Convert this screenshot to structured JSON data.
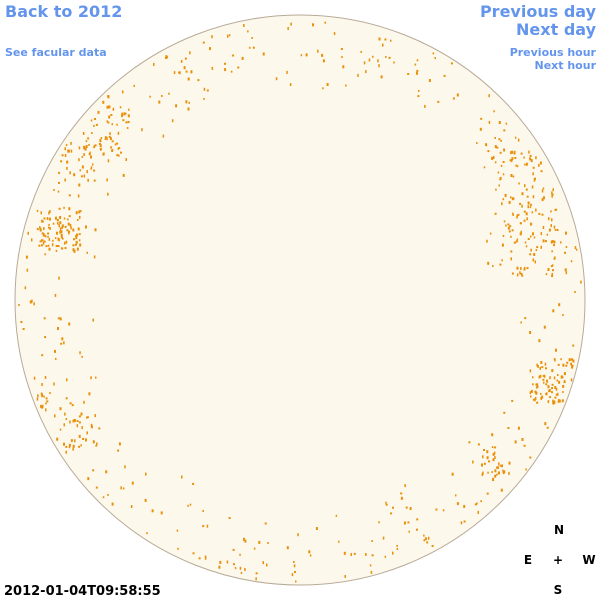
{
  "links": {
    "back": "Back to 2012",
    "facular": "See facular data",
    "previous_day": "Previous day",
    "next_day": "Next day",
    "previous_hour": "Previous hour",
    "next_hour": "Next hour"
  },
  "timestamp": "2012-01-04T09:58:55",
  "compass": {
    "north": "N",
    "east": "E",
    "center": "+",
    "west": "W",
    "south": "S"
  }
}
